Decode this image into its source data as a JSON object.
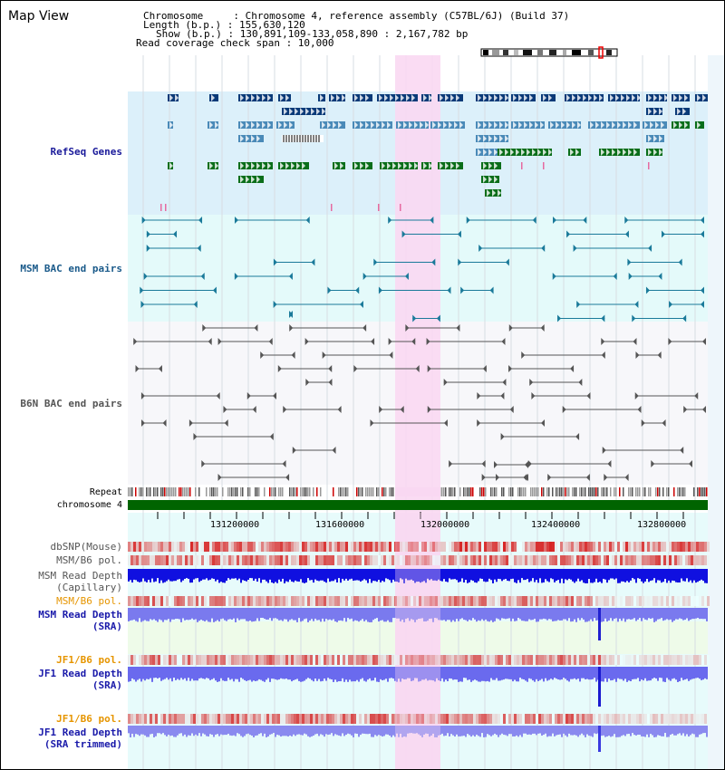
{
  "title": "Map View",
  "info": {
    "line1": "Chromosome     : Chromosome 4, reference assembly (C57BL/6J) (Build 37)",
    "line2": "Length (b.p.) : 155,630,120",
    "line3": "Show (b.p.) : 130,891,109-133,058,890 : 2,167,782 bp",
    "line4": "Read coverage check span : 10,000"
  },
  "tracks": {
    "refseq": "RefSeq Genes",
    "msm_bac": "MSM BAC end pairs",
    "b6n_bac": "B6N BAC end pairs",
    "repeat": "Repeat",
    "chromosome": "chromosome 4",
    "dbsnp": "dbSNP(Mouse)",
    "msm_b6_pol": "MSM/B6 pol.",
    "msm_depth_cap_1": "MSM Read Depth",
    "msm_depth_cap_2": "(Capillary)",
    "msm_b6_pol_2": "MSM/B6 pol.",
    "msm_depth_sra_1": "MSM Read Depth",
    "msm_depth_sra_2": "(SRA)",
    "jf1_b6_pol": "JF1/B6 pol.",
    "jf1_depth_sra_1": "JF1 Read Depth",
    "jf1_depth_sra_2": "(SRA)",
    "jf1_b6_pol_2": "JF1/B6 pol.",
    "jf1_depth_trim_1": "JF1 Read Depth",
    "jf1_depth_trim_2": "(SRA trimmed)"
  },
  "axis_ticks": [
    "131200000",
    "131600000",
    "132000000",
    "132400000",
    "132800000"
  ],
  "colors": {
    "refseq_bg": "#dcf0fa",
    "bac_bg": "#e4fafa",
    "highlight": "#f9d8f2",
    "chromosome_bar": "#006400",
    "gene_dark": "#0a3a78",
    "gene_mid": "#4a8ab8",
    "gene_green": "#0a6e1a",
    "bac_line": "#1a7a9a",
    "b6n_line": "#555555",
    "depth_blue": "#1010e0",
    "depth_light": "#7a7aee"
  }
}
